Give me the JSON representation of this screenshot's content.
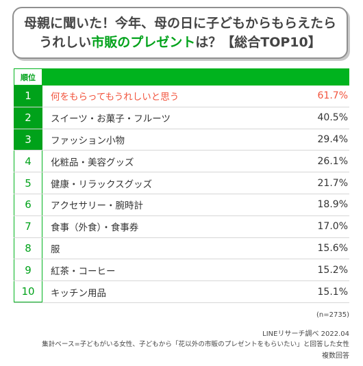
{
  "title": {
    "line1": "母親に聞いた！今年、母の日に子どもからもらえたら",
    "line2_prefix": "うれしい",
    "line2_accent": "市販のプレゼント",
    "line2_suffix": "は？【総合TOP10】"
  },
  "table": {
    "rank_header": "順位",
    "rows": [
      {
        "rank": "1",
        "label": "何をもらってもうれしいと思う",
        "value": "61.7%"
      },
      {
        "rank": "2",
        "label": "スイーツ・お菓子・フルーツ",
        "value": "40.5%"
      },
      {
        "rank": "3",
        "label": "ファッション小物",
        "value": "29.4%"
      },
      {
        "rank": "4",
        "label": "化粧品・美容グッズ",
        "value": "26.1%"
      },
      {
        "rank": "5",
        "label": "健康・リラックスグッズ",
        "value": "21.7%"
      },
      {
        "rank": "6",
        "label": "アクセサリー・腕時計",
        "value": "18.9%"
      },
      {
        "rank": "7",
        "label": "食事（外食）・食事券",
        "value": "17.0%"
      },
      {
        "rank": "8",
        "label": "服",
        "value": "15.6%"
      },
      {
        "rank": "9",
        "label": "紅茶・コーヒー",
        "value": "15.2%"
      },
      {
        "rank": "10",
        "label": "キッチン用品",
        "value": "15.1%"
      }
    ]
  },
  "footer": {
    "sample": "(n=2735)",
    "source": "LINEリサーチ調べ 2022.04",
    "basis": "集計ベース=子どもがいる女性、子どもから「花以外の市販のプレゼントをもらいたい」と回答した女性",
    "note": "複数回答"
  },
  "colors": {
    "accent": "#00a21a",
    "highlight": "#f2533c"
  }
}
